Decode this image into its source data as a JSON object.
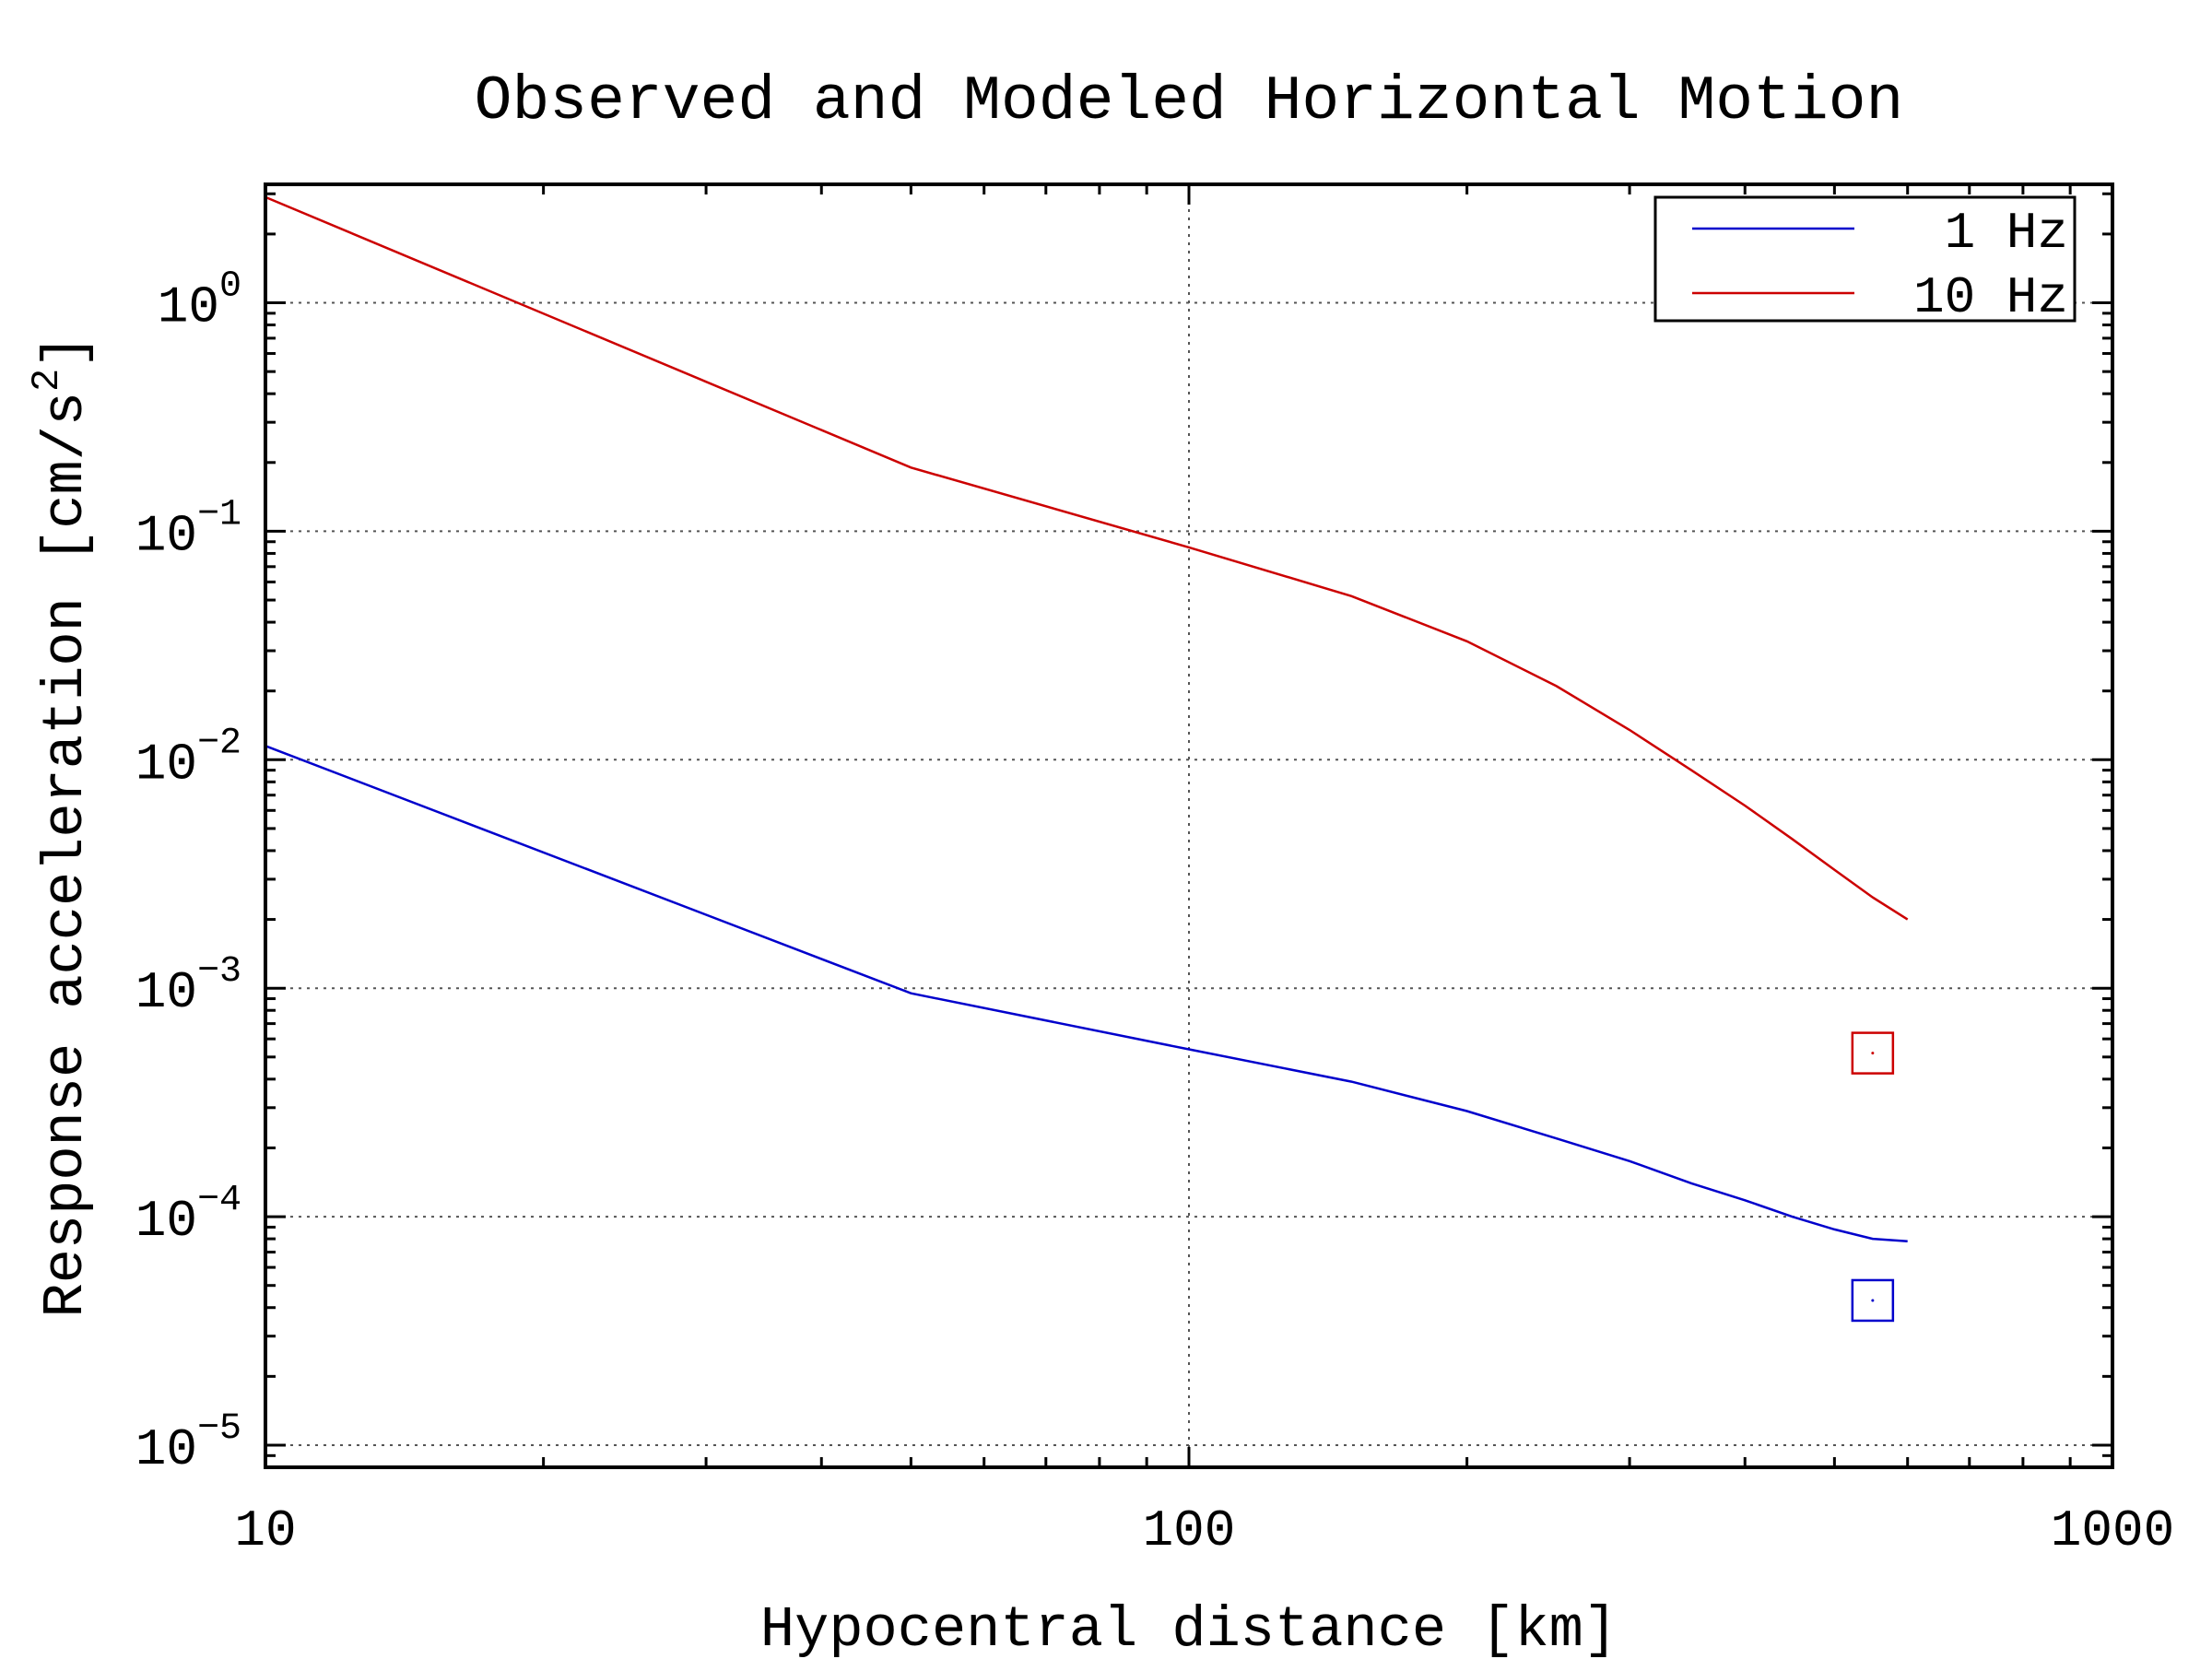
{
  "chart_data": {
    "type": "line",
    "title": "Observed and Modeled Horizontal Motion",
    "xlabel": "Hypocentral distance [km]",
    "ylabel": "Response acceleration [cm/s^2]",
    "xscale": "log",
    "yscale": "log",
    "xlim": [
      10,
      1000
    ],
    "ylim": [
      8e-06,
      3.3
    ],
    "x_ticks": [
      {
        "value": 10,
        "label": "10"
      },
      {
        "value": 100,
        "label": "100"
      },
      {
        "value": 1000,
        "label": "1000"
      }
    ],
    "y_ticks": [
      {
        "value": 1e-05,
        "base": "10",
        "exp": "−5"
      },
      {
        "value": 0.0001,
        "base": "10",
        "exp": "−4"
      },
      {
        "value": 0.001,
        "base": "10",
        "exp": "−3"
      },
      {
        "value": 0.01,
        "base": "10",
        "exp": "−2"
      },
      {
        "value": 0.1,
        "base": "10",
        "exp": "−1"
      },
      {
        "value": 1,
        "base": "10",
        "exp": "0"
      }
    ],
    "grid": true,
    "legend_position": "top-right",
    "series": [
      {
        "name": "1 Hz",
        "color": "#0000cc",
        "x": [
          10,
          50,
          100,
          150,
          200,
          250,
          300,
          350,
          400,
          450,
          500,
          550,
          600
        ],
        "y": [
          0.0115,
          0.00095,
          0.00054,
          0.00039,
          0.00029,
          0.00022,
          0.000175,
          0.00014,
          0.000118,
          0.0001,
          8.8e-05,
          8e-05,
          7.8e-05
        ]
      },
      {
        "name": "10 Hz",
        "color": "#cc0000",
        "x": [
          10,
          50,
          100,
          150,
          200,
          250,
          300,
          350,
          400,
          450,
          500,
          550,
          600
        ],
        "y": [
          2.9,
          0.19,
          0.085,
          0.052,
          0.033,
          0.021,
          0.0135,
          0.009,
          0.0063,
          0.0045,
          0.0033,
          0.0025,
          0.002
        ]
      }
    ],
    "observed_points": [
      {
        "series": "1 Hz",
        "color": "#0000cc",
        "x": 550,
        "y": 4.3e-05
      },
      {
        "series": "10 Hz",
        "color": "#cc0000",
        "x": 550,
        "y": 0.00052
      }
    ]
  }
}
